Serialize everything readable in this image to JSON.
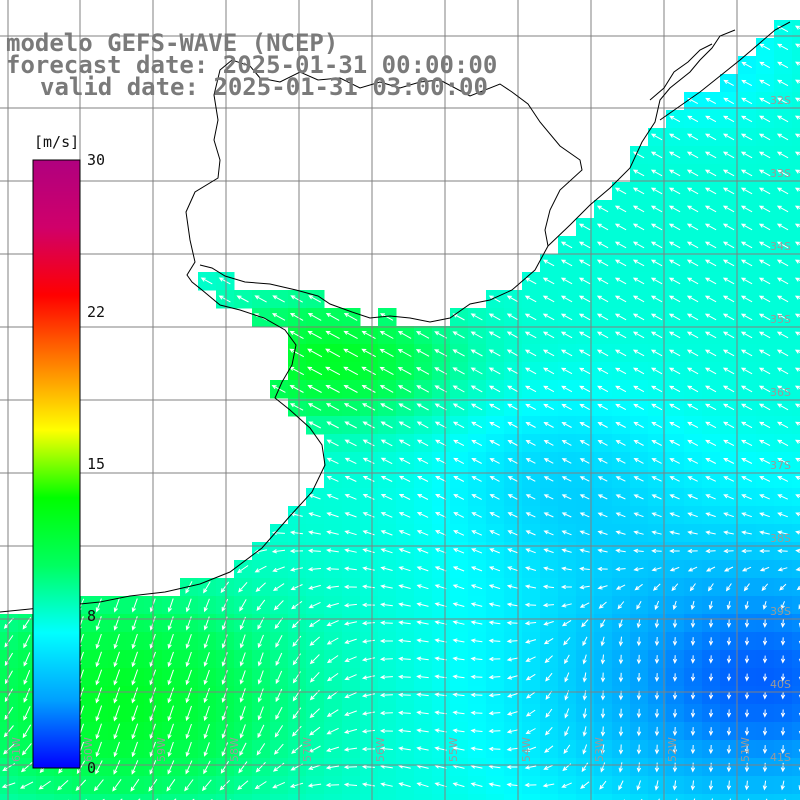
{
  "title": {
    "model": "modelo GEFS-WAVE (NCEP)",
    "forecast": "forecast date: 2025-01-31 00:00:00",
    "valid": "valid date: 2025-01-31 03:00:00"
  },
  "colorbar": {
    "unit": "[m/s]",
    "ticks": [
      "30",
      "22",
      "15",
      "8",
      "0"
    ],
    "stops": [
      "#0000ff",
      "#00a0ff",
      "#00ffff",
      "#00ff60",
      "#00ff00",
      "#ffff00",
      "#ff7f00",
      "#ff0000",
      "#d0006a",
      "#b0007f"
    ]
  },
  "graticule": {
    "lat_labels": [
      "32S",
      "33S",
      "34S",
      "35S",
      "36S",
      "37S",
      "38S",
      "39S",
      "40S",
      "41S"
    ],
    "lon_labels": [
      "61W",
      "60W",
      "59W",
      "58W",
      "57W",
      "56W",
      "55W",
      "54W",
      "53W",
      "52W",
      "51W"
    ]
  },
  "colors": {
    "land": "#ffffff",
    "coast": "#000000",
    "grid": "#808080",
    "arrow": "#ffffff"
  }
}
